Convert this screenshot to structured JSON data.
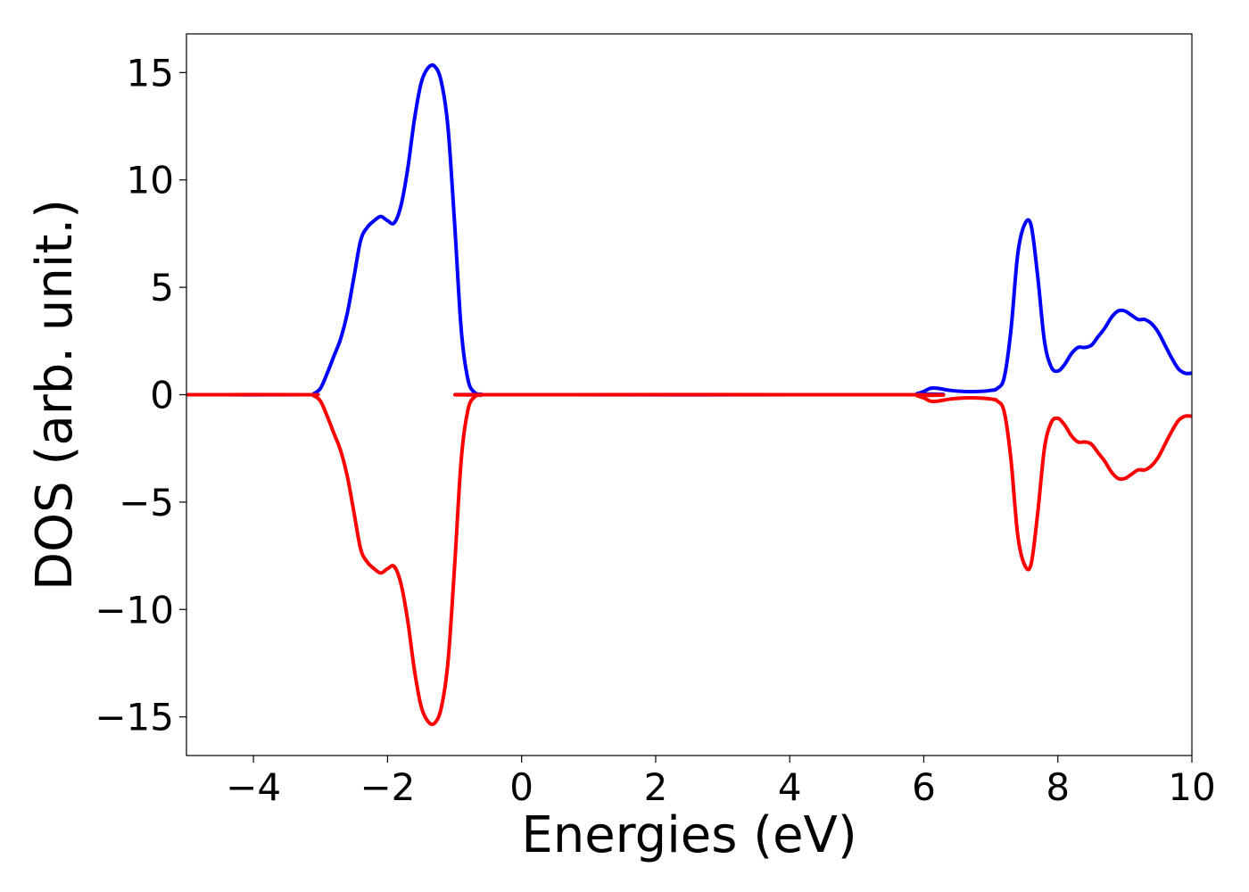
{
  "chart_data": {
    "type": "line",
    "title": "",
    "xlabel": "Energies (eV)",
    "ylabel": "DOS (arb. unit.)",
    "xlim": [
      -5,
      10
    ],
    "ylim": [
      -16.8,
      16.8
    ],
    "xticks": [
      -4,
      -2,
      0,
      2,
      4,
      6,
      8,
      10
    ],
    "xtick_labels": [
      "−4",
      "−2",
      "0",
      "2",
      "4",
      "6",
      "8",
      "10"
    ],
    "yticks": [
      15,
      10,
      5,
      0,
      -5,
      -10,
      -15
    ],
    "ytick_labels": [
      "15",
      "10",
      "5",
      "0",
      "−5",
      "−10",
      "−15"
    ],
    "grid": false,
    "legend": "none",
    "series": [
      {
        "color": "#0000ff",
        "x": [
          -5.0,
          -3.2,
          -3.1,
          -3.0,
          -2.9,
          -2.8,
          -2.7,
          -2.6,
          -2.5,
          -2.4,
          -2.3,
          -2.2,
          -2.1,
          -2.0,
          -1.9,
          -1.8,
          -1.7,
          -1.6,
          -1.5,
          -1.4,
          -1.3,
          -1.2,
          -1.1,
          -1.0,
          -0.9,
          -0.8,
          -0.7,
          -0.6,
          -0.5,
          5.8,
          5.9,
          6.0,
          6.1,
          6.2,
          6.4,
          6.6,
          6.8,
          7.0,
          7.1,
          7.2,
          7.3,
          7.4,
          7.5,
          7.6,
          7.7,
          7.8,
          7.9,
          8.0,
          8.1,
          8.2,
          8.3,
          8.4,
          8.5,
          8.6,
          8.7,
          8.8,
          8.9,
          9.0,
          9.1,
          9.2,
          9.3,
          9.4,
          9.5,
          9.6,
          9.7,
          9.8,
          9.9,
          10.0
        ],
        "y": [
          0,
          0,
          0.05,
          0.3,
          1.0,
          1.8,
          2.6,
          3.8,
          5.5,
          7.2,
          7.8,
          8.1,
          8.3,
          8.1,
          8.0,
          8.8,
          10.5,
          12.8,
          14.5,
          15.2,
          15.3,
          14.6,
          12.5,
          8.0,
          3.0,
          0.7,
          0.1,
          0.02,
          0,
          0,
          0.05,
          0.15,
          0.3,
          0.3,
          0.2,
          0.15,
          0.15,
          0.2,
          0.3,
          0.8,
          3.0,
          6.5,
          7.9,
          7.9,
          5.5,
          2.5,
          1.3,
          1.1,
          1.4,
          1.9,
          2.2,
          2.2,
          2.3,
          2.7,
          3.1,
          3.6,
          3.9,
          3.9,
          3.7,
          3.5,
          3.5,
          3.3,
          2.9,
          2.3,
          1.7,
          1.2,
          1.0,
          1.0
        ]
      },
      {
        "color": "#ff0000",
        "x": [
          -5.0,
          -3.2,
          -3.1,
          -3.0,
          -2.9,
          -2.8,
          -2.7,
          -2.6,
          -2.5,
          -2.4,
          -2.3,
          -2.2,
          -2.1,
          -2.0,
          -1.9,
          -1.8,
          -1.7,
          -1.6,
          -1.5,
          -1.4,
          -1.3,
          -1.2,
          -1.1,
          -1.0,
          -0.9,
          -0.8,
          -0.7,
          -0.6,
          -0.5,
          5.8,
          5.9,
          6.0,
          6.1,
          6.2,
          6.4,
          6.6,
          6.8,
          7.0,
          7.1,
          7.2,
          7.3,
          7.4,
          7.5,
          7.6,
          7.7,
          7.8,
          7.9,
          8.0,
          8.1,
          8.2,
          8.3,
          8.4,
          8.5,
          8.6,
          8.7,
          8.8,
          8.9,
          9.0,
          9.1,
          9.2,
          9.3,
          9.4,
          9.5,
          9.6,
          9.7,
          9.8,
          9.9,
          10.0
        ],
        "y": [
          0,
          0,
          -0.05,
          -0.3,
          -1.0,
          -1.8,
          -2.6,
          -3.8,
          -5.5,
          -7.2,
          -7.8,
          -8.1,
          -8.3,
          -8.1,
          -8.0,
          -8.8,
          -10.5,
          -12.8,
          -14.5,
          -15.2,
          -15.3,
          -14.6,
          -12.5,
          -8.0,
          -3.0,
          -0.7,
          -0.1,
          -0.02,
          0,
          0,
          -0.05,
          -0.15,
          -0.3,
          -0.3,
          -0.2,
          -0.15,
          -0.15,
          -0.2,
          -0.3,
          -0.8,
          -3.0,
          -6.5,
          -7.9,
          -7.9,
          -5.5,
          -2.5,
          -1.3,
          -1.1,
          -1.4,
          -1.9,
          -2.2,
          -2.2,
          -2.3,
          -2.7,
          -3.1,
          -3.6,
          -3.9,
          -3.9,
          -3.7,
          -3.5,
          -3.5,
          -3.3,
          -2.9,
          -2.3,
          -1.7,
          -1.2,
          -1.0,
          -1.0
        ]
      }
    ]
  }
}
